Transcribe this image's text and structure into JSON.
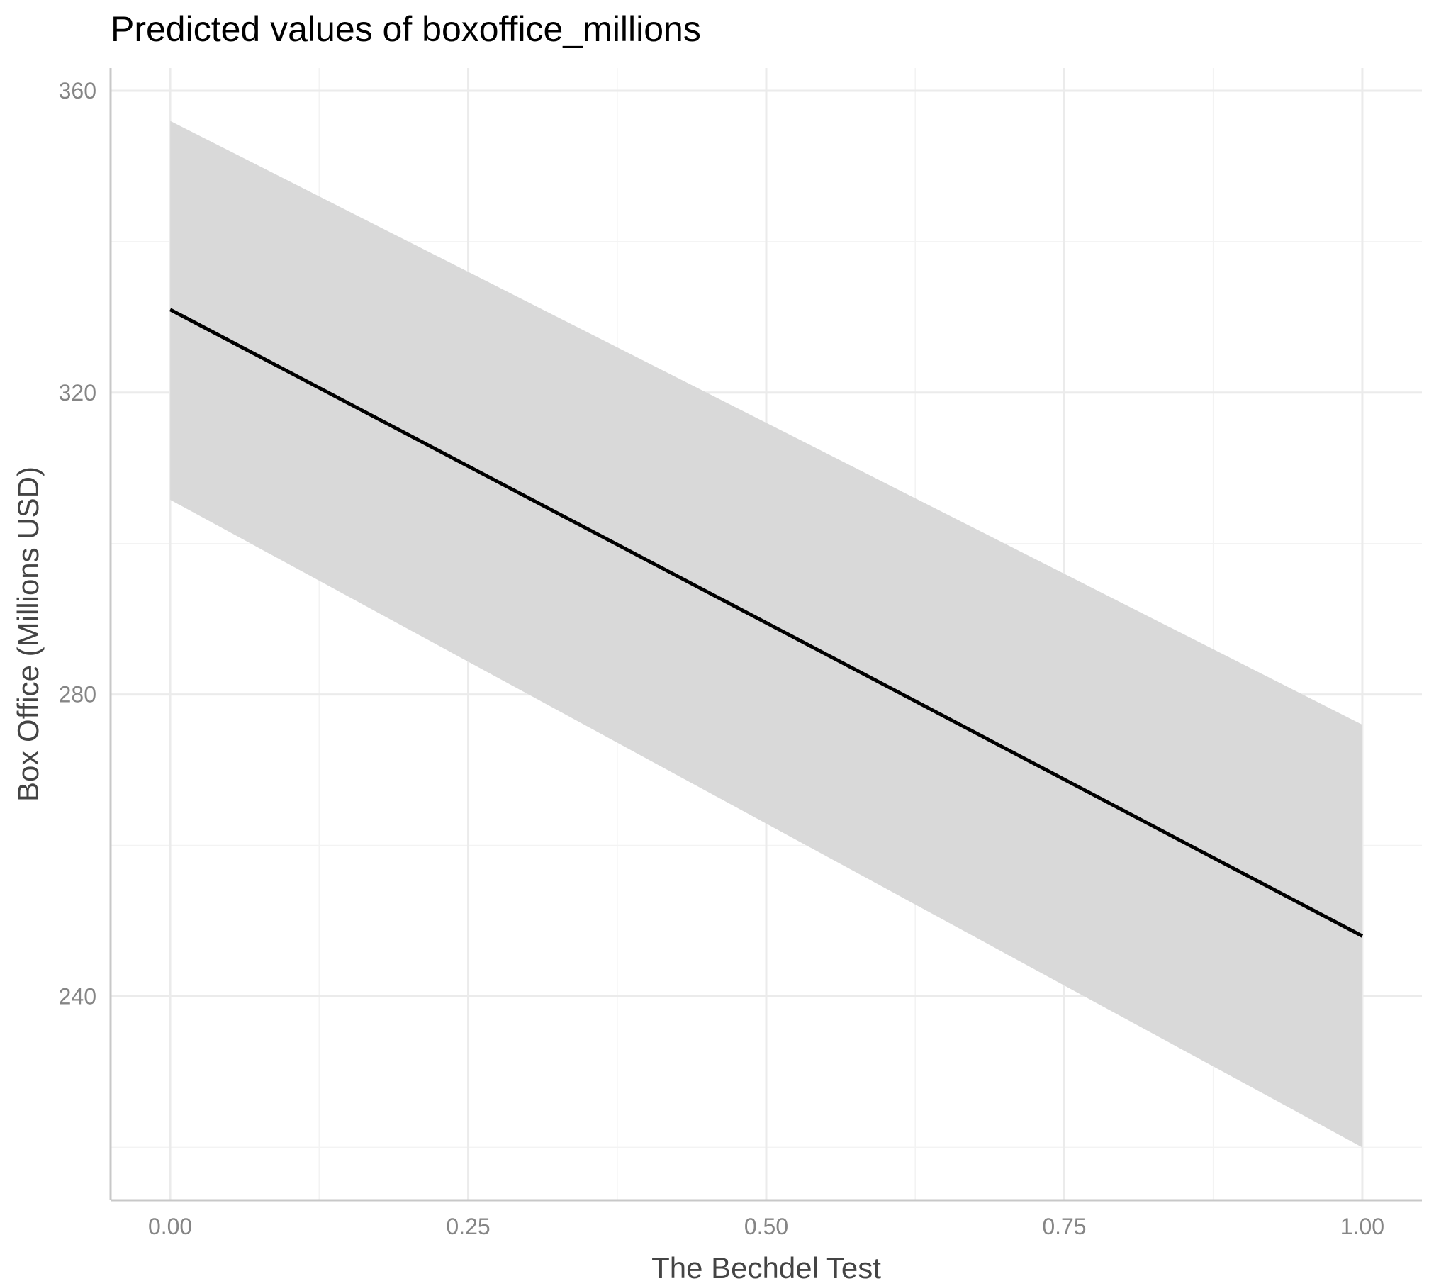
{
  "chart_data": {
    "type": "line",
    "title": "Predicted values of boxoffice_millions",
    "xlabel": "The Bechdel Test",
    "ylabel": "Box Office (Millions USD)",
    "xlim": [
      -0.05,
      1.05
    ],
    "ylim": [
      213,
      363
    ],
    "x_ticks": [
      0.0,
      0.25,
      0.5,
      0.75,
      1.0
    ],
    "x_tick_labels": [
      "0.00",
      "0.25",
      "0.50",
      "0.75",
      "1.00"
    ],
    "y_ticks": [
      240,
      280,
      320,
      360
    ],
    "y_tick_labels": [
      "240",
      "280",
      "320",
      "360"
    ],
    "x_minor_ticks": [
      0.125,
      0.375,
      0.625,
      0.875
    ],
    "y_minor_ticks": [
      220,
      260,
      300,
      340
    ],
    "grid": true,
    "series": [
      {
        "x": [
          0.0,
          1.0
        ],
        "y": [
          331,
          248
        ],
        "ci_lower": [
          305.8,
          220
        ],
        "ci_upper": [
          356,
          276
        ],
        "color": "#000000",
        "band_color": "#d9d9d9"
      }
    ]
  }
}
